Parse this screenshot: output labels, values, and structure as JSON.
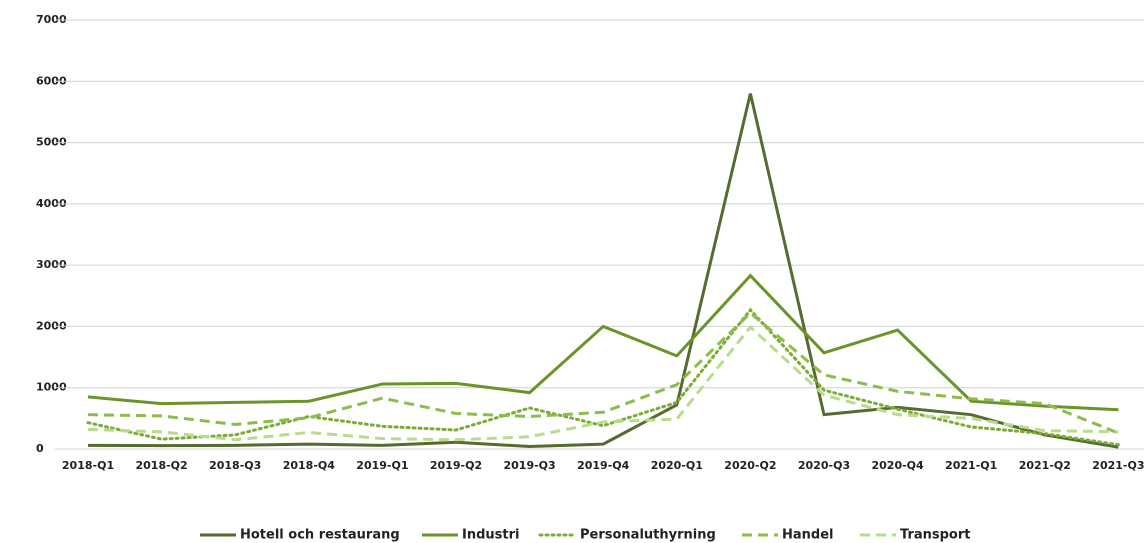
{
  "chart_data": {
    "type": "line",
    "categories": [
      "2018-Q1",
      "2018-Q2",
      "2018-Q3",
      "2018-Q4",
      "2019-Q1",
      "2019-Q2",
      "2019-Q3",
      "2019-Q4",
      "2020-Q1",
      "2020-Q2",
      "2020-Q3",
      "2020-Q4",
      "2021-Q1",
      "2021-Q2",
      "2021-Q3"
    ],
    "series": [
      {
        "name": "Hotell och restaurang",
        "color": "#556b2f",
        "dash": "solid",
        "values": [
          60,
          55,
          60,
          80,
          60,
          110,
          40,
          80,
          720,
          5800,
          560,
          680,
          560,
          230,
          30
        ]
      },
      {
        "name": "Industri",
        "color": "#6b9428",
        "dash": "solid",
        "values": [
          850,
          740,
          760,
          780,
          1060,
          1070,
          920,
          2000,
          1520,
          2830,
          1570,
          1940,
          780,
          700,
          640
        ]
      },
      {
        "name": "Personaluthyrning",
        "color": "#7aab32",
        "dash": "dotted",
        "values": [
          430,
          160,
          230,
          530,
          370,
          310,
          670,
          380,
          760,
          2270,
          960,
          650,
          360,
          250,
          70
        ]
      },
      {
        "name": "Handel",
        "color": "#8cbd48",
        "dash": "dashed",
        "values": [
          560,
          540,
          400,
          510,
          830,
          580,
          530,
          600,
          1050,
          2220,
          1210,
          940,
          820,
          740,
          260
        ]
      },
      {
        "name": "Transport",
        "color": "#b8dc8c",
        "dash": "dashed",
        "values": [
          320,
          280,
          150,
          270,
          170,
          150,
          200,
          440,
          490,
          1990,
          880,
          560,
          500,
          300,
          280
        ]
      }
    ],
    "ylim": [
      0,
      7000
    ],
    "yticks": [
      0,
      1000,
      2000,
      3000,
      4000,
      5000,
      6000,
      7000
    ],
    "grid": true,
    "legend": "bottom"
  }
}
